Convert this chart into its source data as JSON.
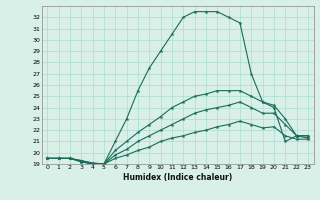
{
  "title": "",
  "xlabel": "Humidex (Indice chaleur)",
  "x_values": [
    0,
    1,
    2,
    3,
    4,
    5,
    6,
    7,
    8,
    9,
    10,
    11,
    12,
    13,
    14,
    15,
    16,
    17,
    18,
    19,
    20,
    21,
    22,
    23
  ],
  "line_max": [
    19.5,
    19.5,
    19.5,
    19.3,
    19.0,
    19.0,
    21.0,
    23.0,
    25.5,
    27.5,
    29.0,
    30.5,
    32.0,
    32.5,
    32.5,
    32.5,
    32.0,
    31.5,
    27.0,
    24.5,
    24.0,
    21.0,
    21.5,
    21.5
  ],
  "line_upper_mid": [
    19.5,
    19.5,
    19.5,
    19.3,
    19.1,
    19.0,
    20.2,
    21.0,
    21.8,
    22.5,
    23.2,
    24.0,
    24.5,
    25.0,
    25.2,
    25.5,
    25.5,
    25.5,
    25.0,
    24.5,
    24.2,
    23.0,
    21.5,
    21.5
  ],
  "line_lower_mid": [
    19.5,
    19.5,
    19.5,
    19.2,
    19.0,
    19.0,
    19.8,
    20.3,
    21.0,
    21.5,
    22.0,
    22.5,
    23.0,
    23.5,
    23.8,
    24.0,
    24.2,
    24.5,
    24.0,
    23.5,
    23.5,
    22.5,
    21.5,
    21.3
  ],
  "line_min": [
    19.5,
    19.5,
    19.5,
    19.2,
    19.0,
    19.0,
    19.5,
    19.8,
    20.2,
    20.5,
    21.0,
    21.3,
    21.5,
    21.8,
    22.0,
    22.3,
    22.5,
    22.8,
    22.5,
    22.2,
    22.3,
    21.5,
    21.2,
    21.2
  ],
  "color": "#1a6b5a",
  "bg_color": "#d8f0e8",
  "grid_color": "#aaddcc",
  "ylim": [
    19,
    33
  ],
  "yticks": [
    19,
    20,
    21,
    22,
    23,
    24,
    25,
    26,
    27,
    28,
    29,
    30,
    31,
    32
  ],
  "xticks": [
    0,
    1,
    2,
    3,
    4,
    5,
    6,
    7,
    8,
    9,
    10,
    11,
    12,
    13,
    14,
    15,
    16,
    17,
    18,
    19,
    20,
    21,
    22,
    23
  ],
  "marker": "*",
  "markersize": 3,
  "linewidth": 0.8
}
